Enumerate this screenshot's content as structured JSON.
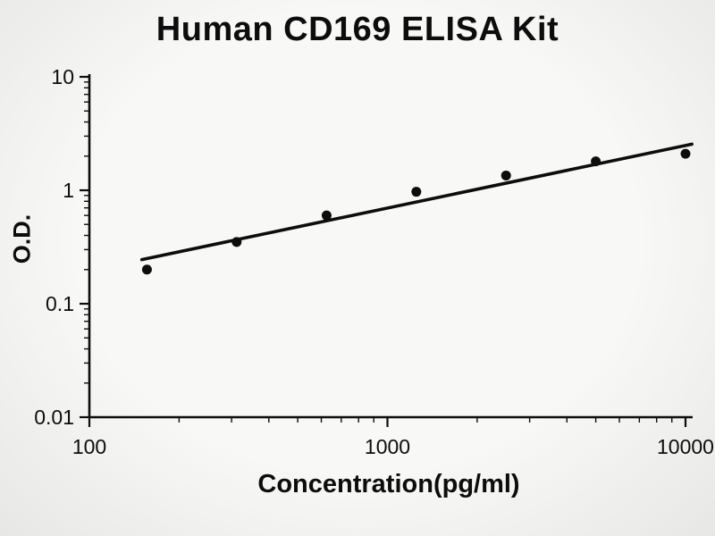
{
  "chart_data": {
    "type": "scatter",
    "title": "Human CD169 ELISA Kit",
    "xlabel": "Concentration(pg/ml)",
    "ylabel": "O.D.",
    "x_scale": "log",
    "y_scale": "log",
    "xlim": [
      100,
      10000
    ],
    "ylim": [
      0.01,
      10
    ],
    "x_ticks": [
      100,
      1000,
      10000
    ],
    "y_ticks": [
      10,
      1,
      0.1,
      0.01
    ],
    "grid": false,
    "points": [
      {
        "x": 156,
        "y": 0.2
      },
      {
        "x": 312,
        "y": 0.35
      },
      {
        "x": 625,
        "y": 0.6
      },
      {
        "x": 1250,
        "y": 0.97
      },
      {
        "x": 2500,
        "y": 1.35
      },
      {
        "x": 5000,
        "y": 1.8
      },
      {
        "x": 10000,
        "y": 2.1
      }
    ],
    "trendline": {
      "x1": 150,
      "y1": 0.245,
      "x2": 10500,
      "y2": 2.55
    },
    "colors": {
      "points": "#0d0d0d",
      "line": "#0d0d0d",
      "text": "#0d0d0d"
    }
  }
}
